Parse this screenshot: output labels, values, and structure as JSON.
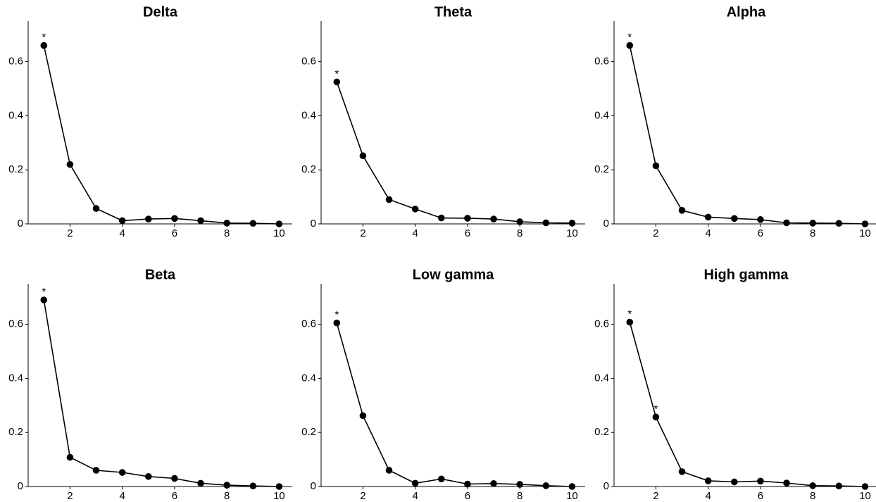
{
  "chart_data": [
    {
      "type": "line",
      "title": "Delta",
      "x": [
        1,
        2,
        3,
        4,
        5,
        6,
        7,
        8,
        9,
        10
      ],
      "values": [
        0.66,
        0.22,
        0.057,
        0.012,
        0.018,
        0.02,
        0.012,
        0.003,
        0.002,
        0.0
      ],
      "color": "#000000",
      "xlim": [
        0.4,
        10.5
      ],
      "ylim": [
        0,
        0.75
      ],
      "xticks": [
        2,
        4,
        6,
        8,
        10
      ],
      "yticks": [
        0,
        0.2,
        0.4,
        0.6
      ],
      "annotations": [
        {
          "x": 1,
          "text": "*"
        }
      ]
    },
    {
      "type": "line",
      "title": "Theta",
      "x": [
        1,
        2,
        3,
        4,
        5,
        6,
        7,
        8,
        9,
        10
      ],
      "values": [
        0.525,
        0.252,
        0.09,
        0.055,
        0.022,
        0.021,
        0.018,
        0.008,
        0.004,
        0.003
      ],
      "color": "#000000",
      "xlim": [
        0.4,
        10.5
      ],
      "ylim": [
        0,
        0.75
      ],
      "xticks": [
        2,
        4,
        6,
        8,
        10
      ],
      "yticks": [
        0,
        0.2,
        0.4,
        0.6
      ],
      "annotations": [
        {
          "x": 1,
          "text": "*"
        }
      ]
    },
    {
      "type": "line",
      "title": "Alpha",
      "x": [
        1,
        2,
        3,
        4,
        5,
        6,
        7,
        8,
        9,
        10
      ],
      "values": [
        0.66,
        0.215,
        0.05,
        0.025,
        0.02,
        0.016,
        0.004,
        0.003,
        0.002,
        0.0
      ],
      "color": "#000000",
      "xlim": [
        0.4,
        10.5
      ],
      "ylim": [
        0,
        0.75
      ],
      "xticks": [
        2,
        4,
        6,
        8,
        10
      ],
      "yticks": [
        0,
        0.2,
        0.4,
        0.6
      ],
      "annotations": [
        {
          "x": 1,
          "text": "*"
        }
      ]
    },
    {
      "type": "line",
      "title": "Beta",
      "x": [
        1,
        2,
        3,
        4,
        5,
        6,
        7,
        8,
        9,
        10
      ],
      "values": [
        0.69,
        0.108,
        0.06,
        0.052,
        0.037,
        0.03,
        0.012,
        0.005,
        0.002,
        0.0
      ],
      "color": "#000000",
      "xlim": [
        0.4,
        10.5
      ],
      "ylim": [
        0,
        0.75
      ],
      "xticks": [
        2,
        4,
        6,
        8,
        10
      ],
      "yticks": [
        0,
        0.2,
        0.4,
        0.6
      ],
      "annotations": [
        {
          "x": 1,
          "text": "*"
        }
      ]
    },
    {
      "type": "line",
      "title": "Low gamma",
      "x": [
        1,
        2,
        3,
        4,
        5,
        6,
        7,
        8,
        9,
        10
      ],
      "values": [
        0.605,
        0.262,
        0.06,
        0.012,
        0.028,
        0.009,
        0.011,
        0.008,
        0.003,
        0.0
      ],
      "color": "#000000",
      "xlim": [
        0.4,
        10.5
      ],
      "ylim": [
        0,
        0.75
      ],
      "xticks": [
        2,
        4,
        6,
        8,
        10
      ],
      "yticks": [
        0,
        0.2,
        0.4,
        0.6
      ],
      "annotations": [
        {
          "x": 1,
          "text": "*"
        }
      ]
    },
    {
      "type": "line",
      "title": "High gamma",
      "x": [
        1,
        2,
        3,
        4,
        5,
        6,
        7,
        8,
        9,
        10
      ],
      "values": [
        0.608,
        0.257,
        0.055,
        0.021,
        0.017,
        0.02,
        0.013,
        0.003,
        0.002,
        0.0
      ],
      "color": "#000000",
      "xlim": [
        0.4,
        10.5
      ],
      "ylim": [
        0,
        0.75
      ],
      "xticks": [
        2,
        4,
        6,
        8,
        10
      ],
      "yticks": [
        0,
        0.2,
        0.4,
        0.6
      ],
      "annotations": [
        {
          "x": 1,
          "text": "*"
        },
        {
          "x": 2,
          "text": "*"
        }
      ]
    }
  ]
}
